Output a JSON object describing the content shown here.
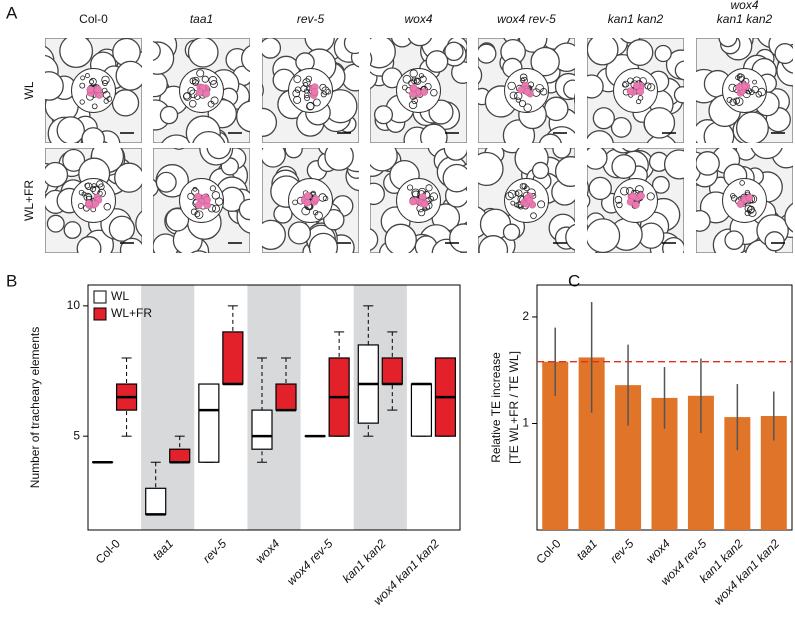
{
  "panel_a": {
    "label": "A",
    "columns": [
      [
        "Col-0"
      ],
      [
        "taa1"
      ],
      [
        "rev-5"
      ],
      [
        "wox4"
      ],
      [
        "wox4 rev-5"
      ],
      [
        "kan1 kan2"
      ],
      [
        "wox4",
        "kan1 kan2"
      ]
    ],
    "rows": [
      "WL",
      "WL+FR"
    ]
  },
  "chart_data": [
    {
      "type": "boxplot",
      "panel_label": "B",
      "y_label": "Number of tracheary elements",
      "categories": [
        "Col-0",
        "taa1",
        "rev-5",
        "wox4",
        "wox4 rev-5",
        "kan1 kan2",
        "wox4 kan1 kan2"
      ],
      "ylim": [
        1.4,
        10.8
      ],
      "yticks": [
        5,
        10
      ],
      "band_shading": "alternate",
      "legend": "upper-left",
      "series": [
        {
          "name": "WL",
          "color": "#ffffff",
          "min": [
            4,
            2,
            4,
            4,
            5,
            5,
            5
          ],
          "q1": [
            4,
            2,
            4,
            4.5,
            5,
            5.5,
            5
          ],
          "median": [
            4,
            2,
            6,
            5,
            5,
            7,
            7
          ],
          "q3": [
            4,
            3,
            7,
            6,
            5,
            8.5,
            7
          ],
          "max": [
            4,
            4,
            7,
            8,
            5,
            10,
            7
          ]
        },
        {
          "name": "WL+FR",
          "color": "#e3212a",
          "min": [
            5,
            4,
            7,
            6,
            5,
            6,
            5
          ],
          "q1": [
            6,
            4,
            7,
            6,
            5,
            7,
            5
          ],
          "median": [
            6.5,
            4,
            7,
            6,
            6.5,
            7,
            6.5
          ],
          "q3": [
            7,
            4.5,
            9,
            7,
            8,
            8,
            8
          ],
          "max": [
            8,
            5,
            10,
            8,
            9,
            9,
            8
          ]
        }
      ]
    },
    {
      "type": "bar",
      "panel_label": "C",
      "y_label": [
        "Relative TE increase",
        "[TE WL+FR / TE WL]"
      ],
      "categories": [
        "Col-0",
        "taa1",
        "rev-5",
        "wox4",
        "wox4 rev-5",
        "kan1 kan2",
        "wox4 kan1 kan2"
      ],
      "values": [
        1.58,
        1.62,
        1.36,
        1.24,
        1.26,
        1.06,
        1.07
      ],
      "errors": [
        0.32,
        0.52,
        0.38,
        0.29,
        0.35,
        0.31,
        0.23
      ],
      "color": "#e07428",
      "ylim": [
        0,
        2.3
      ],
      "yticks": [
        1,
        2
      ],
      "reference_line": 1.58,
      "reference_color": "#e03020"
    }
  ]
}
